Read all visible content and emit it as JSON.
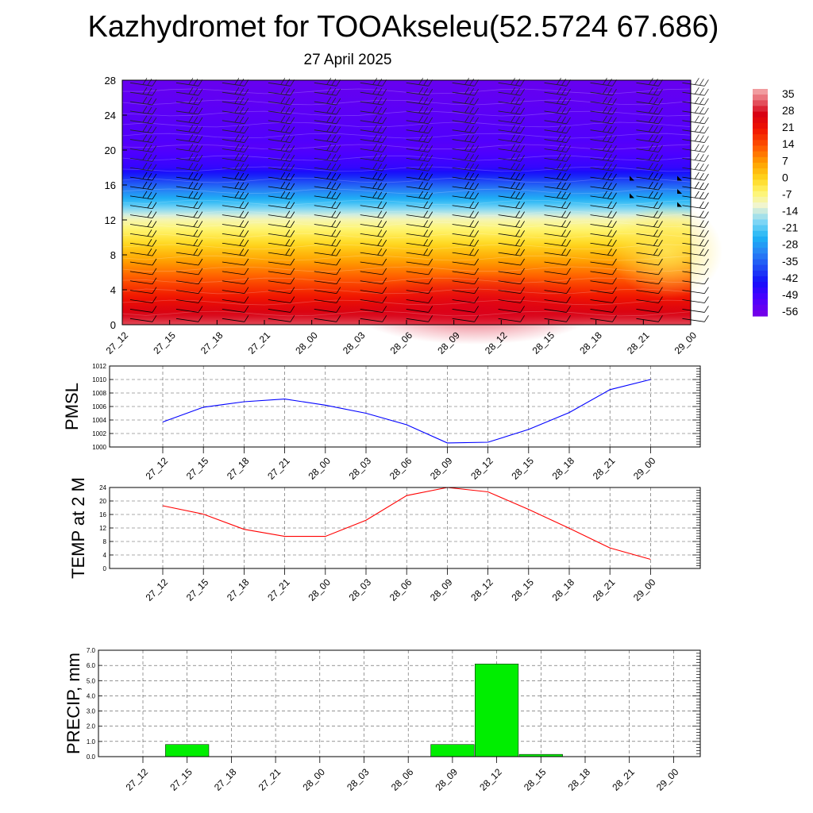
{
  "header": {
    "title": "Kazhydromet for TOOAkseleu(52.5724 67.686)",
    "subtitle": "27 April 2025"
  },
  "chart_data": [
    {
      "type": "heatmap",
      "x_ticks": [
        "27_12",
        "27_15",
        "27_18",
        "27_21",
        "28_00",
        "28_03",
        "28_06",
        "28_09",
        "28_12",
        "28_15",
        "28_18",
        "28_21",
        "29_00"
      ],
      "y_ticks": [
        "0",
        "4",
        "8",
        "12",
        "16",
        "20",
        "24",
        "28"
      ],
      "ylim": [
        0,
        28
      ],
      "colorbar_labels": [
        "35",
        "28",
        "21",
        "14",
        "7",
        "0",
        "-7",
        "-14",
        "-21",
        "-28",
        "-35",
        "-42",
        "-49",
        "-56"
      ],
      "colorbar_range": [
        -63,
        38
      ],
      "wind_barbs": true
    },
    {
      "type": "line",
      "ylabel": "PMSL",
      "categories": [
        "27_12",
        "27_15",
        "27_18",
        "27_21",
        "28_00",
        "28_03",
        "28_06",
        "28_09",
        "28_12",
        "28_15",
        "28_18",
        "28_21",
        "29_00"
      ],
      "values": [
        1003.7,
        1005.9,
        1006.7,
        1007.1,
        1006.2,
        1005.0,
        1003.3,
        1000.6,
        1000.7,
        1002.6,
        1005.1,
        1008.5,
        1010.0
      ],
      "ylim": [
        1000,
        1012
      ],
      "y_ticks": [
        "1000",
        "1002",
        "1004",
        "1006",
        "1008",
        "1010",
        "1012"
      ],
      "color": "#0000ff"
    },
    {
      "type": "line",
      "ylabel": "TEMP at 2 M",
      "categories": [
        "27_12",
        "27_15",
        "27_18",
        "27_21",
        "28_00",
        "28_03",
        "28_06",
        "28_09",
        "28_12",
        "28_15",
        "28_18",
        "28_21",
        "29_00"
      ],
      "values": [
        18.6,
        16.1,
        11.6,
        9.5,
        9.5,
        14.3,
        21.6,
        24.0,
        22.7,
        17.5,
        11.9,
        6.1,
        2.7
      ],
      "ylim": [
        0,
        24
      ],
      "y_ticks": [
        "0",
        "4",
        "8",
        "12",
        "16",
        "20",
        "24"
      ],
      "color": "#ff0000"
    },
    {
      "type": "bar",
      "ylabel": "PRECIP, mm",
      "categories": [
        "27_12",
        "27_15",
        "27_18",
        "27_21",
        "28_00",
        "28_03",
        "28_06",
        "28_09",
        "28_12",
        "28_15",
        "28_18",
        "28_21",
        "29_00"
      ],
      "values": [
        0.0,
        0.8,
        0.0,
        0.0,
        0.0,
        0.0,
        0.0,
        0.8,
        6.1,
        0.15,
        0.0,
        0.0,
        0.0
      ],
      "ylim": [
        0,
        7
      ],
      "y_ticks": [
        "0.0",
        "1.0",
        "2.0",
        "3.0",
        "4.0",
        "5.0",
        "6.0",
        "7.0"
      ],
      "color": "#00ee00"
    }
  ]
}
